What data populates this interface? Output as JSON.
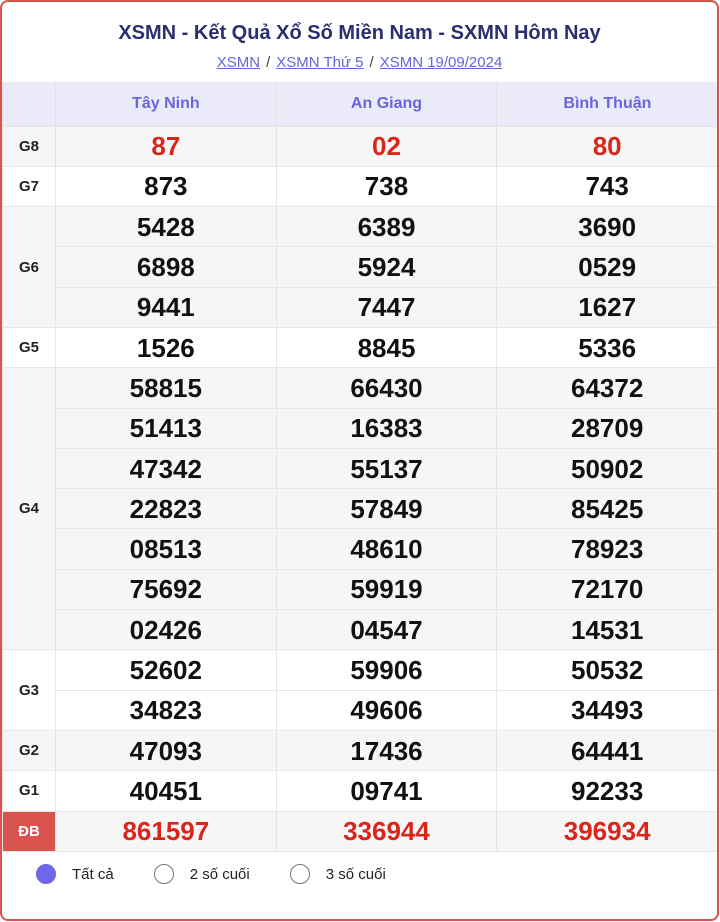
{
  "header": {
    "title": "XSMN - Kết Quả Xổ Số Miền Nam - SXMN Hôm Nay",
    "breadcrumbs": [
      "XSMN",
      "XSMN Thứ 5",
      "XSMN 19/09/2024"
    ]
  },
  "provinces": [
    "Tây Ninh",
    "An Giang",
    "Bình Thuận"
  ],
  "prizes": [
    {
      "label": "G8",
      "rows": [
        [
          "87",
          "02",
          "80"
        ]
      ],
      "red": true
    },
    {
      "label": "G7",
      "rows": [
        [
          "873",
          "738",
          "743"
        ]
      ]
    },
    {
      "label": "G6",
      "rows": [
        [
          "5428",
          "6389",
          "3690"
        ],
        [
          "6898",
          "5924",
          "0529"
        ],
        [
          "9441",
          "7447",
          "1627"
        ]
      ]
    },
    {
      "label": "G5",
      "rows": [
        [
          "1526",
          "8845",
          "5336"
        ]
      ]
    },
    {
      "label": "G4",
      "rows": [
        [
          "58815",
          "66430",
          "64372"
        ],
        [
          "51413",
          "16383",
          "28709"
        ],
        [
          "47342",
          "55137",
          "50902"
        ],
        [
          "22823",
          "57849",
          "85425"
        ],
        [
          "08513",
          "48610",
          "78923"
        ],
        [
          "75692",
          "59919",
          "72170"
        ],
        [
          "02426",
          "04547",
          "14531"
        ]
      ]
    },
    {
      "label": "G3",
      "rows": [
        [
          "52602",
          "59906",
          "50532"
        ],
        [
          "34823",
          "49606",
          "34493"
        ]
      ]
    },
    {
      "label": "G2",
      "rows": [
        [
          "47093",
          "17436",
          "64441"
        ]
      ]
    },
    {
      "label": "G1",
      "rows": [
        [
          "40451",
          "09741",
          "92233"
        ]
      ]
    },
    {
      "label": "ĐB",
      "rows": [
        [
          "861597",
          "336944",
          "396934"
        ]
      ],
      "red": true,
      "special": true
    }
  ],
  "filter": {
    "options": [
      "Tất cả",
      "2 số cuối",
      "3 số cuối"
    ],
    "selected": 0
  },
  "colors": {
    "accent": "#6f66e8",
    "prize_red": "#d9261c",
    "title": "#2a2f6e",
    "border": "#d9534f"
  }
}
